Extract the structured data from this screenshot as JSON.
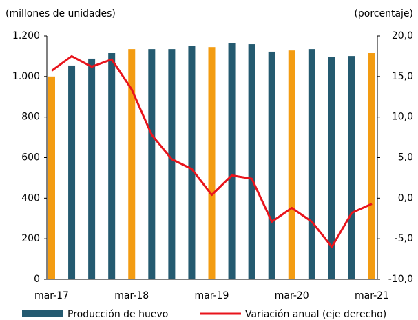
{
  "chart_data": {
    "type": "bar-line",
    "y_label": "(millones de unidades)",
    "y2_label": "(porcentaje)",
    "categories": [
      "mar-17",
      null,
      null,
      null,
      "mar-18",
      null,
      null,
      null,
      "mar-19",
      null,
      null,
      null,
      "mar-20",
      null,
      null,
      null,
      "mar-21"
    ],
    "series": [
      {
        "name": "Producción de huevo",
        "type": "bar",
        "color": "#245a70",
        "colors": [
          "#f39c12",
          "#245a70",
          "#245a70",
          "#245a70",
          "#f39c12",
          "#245a70",
          "#245a70",
          "#245a70",
          "#f39c12",
          "#245a70",
          "#245a70",
          "#245a70",
          "#f39c12",
          "#245a70",
          "#245a70",
          "#245a70",
          "#f39c12"
        ],
        "values": [
          1000,
          1054,
          1088,
          1115,
          1135,
          1135,
          1135,
          1152,
          1145,
          1166,
          1159,
          1122,
          1128,
          1135,
          1098,
          1101,
          1115
        ]
      },
      {
        "name": "Variación anual (eje derecho)",
        "type": "line",
        "color": "#e8141c",
        "axis": "y2",
        "values": [
          15.7,
          17.5,
          16.2,
          17.1,
          13.4,
          7.8,
          4.8,
          3.6,
          0.4,
          2.8,
          2.4,
          -2.9,
          -1.2,
          -2.9,
          -6.0,
          -1.8,
          -0.7
        ]
      }
    ],
    "ylim": [
      0,
      1200
    ],
    "yticks": [
      0,
      200,
      400,
      600,
      800,
      {
        "value": 1000,
        "label": "1.000"
      },
      {
        "value": 1200,
        "label": "1.200"
      }
    ],
    "y2lim": [
      -10,
      20
    ],
    "y2ticks": [
      {
        "value": -10,
        "label": "-10,0"
      },
      {
        "value": -5,
        "label": "-5,0"
      },
      {
        "value": 0,
        "label": "0,0"
      },
      {
        "value": 5,
        "label": "5,0"
      },
      {
        "value": 10,
        "label": "10,0"
      },
      {
        "value": 15,
        "label": "15,0"
      },
      {
        "value": 20,
        "label": "20,0"
      }
    ],
    "legend": "bottom"
  }
}
